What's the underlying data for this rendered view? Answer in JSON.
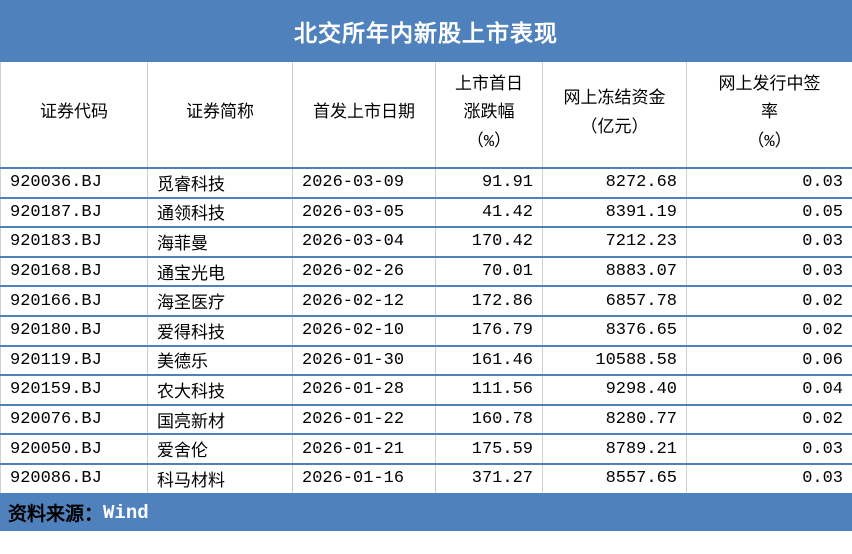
{
  "title": "北交所年内新股上市表现",
  "source": {
    "label": "资料来源：",
    "value": "Wind"
  },
  "colors": {
    "accent_blue": "#4F81BD",
    "row_separator_blue": "#4F81BD",
    "column_separator_gray": "#CFCFCF",
    "title_text": "#FFFFFF",
    "body_text": "#000000",
    "source_label_text": "#000000",
    "source_value_text": "#FFFFFF"
  },
  "table": {
    "columns": [
      {
        "id": "code",
        "align": "left",
        "lines": [
          "证券代码"
        ]
      },
      {
        "id": "name",
        "align": "left",
        "lines": [
          "证券简称"
        ]
      },
      {
        "id": "listing-date",
        "align": "left",
        "lines": [
          "首发上市日期"
        ]
      },
      {
        "id": "first-day-change",
        "align": "right",
        "lines": [
          "上市首日",
          "涨跌幅",
          "（%）"
        ]
      },
      {
        "id": "frozen-funds",
        "align": "right",
        "lines": [
          "网上冻结资金",
          "（亿元）"
        ]
      },
      {
        "id": "lottery-rate",
        "align": "right",
        "lines": [
          "网上发行中签",
          "率",
          "（%）"
        ]
      }
    ]
  },
  "chart_data": {
    "type": "table",
    "title": "北交所年内新股上市表现",
    "columns": [
      "证券代码",
      "证券简称",
      "首发上市日期",
      "上市首日涨跌幅（%）",
      "网上冻结资金（亿元）",
      "网上发行中签率（%）"
    ],
    "rows": [
      [
        "920036.BJ",
        "觅睿科技",
        "2026-03-09",
        "91.91",
        "8272.68",
        "0.03"
      ],
      [
        "920187.BJ",
        "通领科技",
        "2026-03-05",
        "41.42",
        "8391.19",
        "0.05"
      ],
      [
        "920183.BJ",
        "海菲曼",
        "2026-03-04",
        "170.42",
        "7212.23",
        "0.03"
      ],
      [
        "920168.BJ",
        "通宝光电",
        "2026-02-26",
        "70.01",
        "8883.07",
        "0.03"
      ],
      [
        "920166.BJ",
        "海圣医疗",
        "2026-02-12",
        "172.86",
        "6857.78",
        "0.02"
      ],
      [
        "920180.BJ",
        "爱得科技",
        "2026-02-10",
        "176.79",
        "8376.65",
        "0.02"
      ],
      [
        "920119.BJ",
        "美德乐",
        "2026-01-30",
        "161.46",
        "10588.58",
        "0.06"
      ],
      [
        "920159.BJ",
        "农大科技",
        "2026-01-28",
        "111.56",
        "9298.40",
        "0.04"
      ],
      [
        "920076.BJ",
        "国亮新材",
        "2026-01-22",
        "160.78",
        "8280.77",
        "0.02"
      ],
      [
        "920050.BJ",
        "爱舍伦",
        "2026-01-21",
        "175.59",
        "8789.21",
        "0.03"
      ],
      [
        "920086.BJ",
        "科马材料",
        "2026-01-16",
        "371.27",
        "8557.65",
        "0.03"
      ]
    ],
    "source": "资料来源：Wind"
  }
}
